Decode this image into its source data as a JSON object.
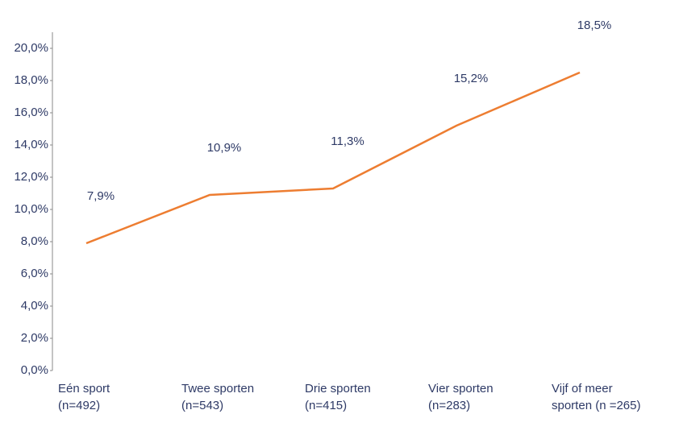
{
  "chart_data": {
    "type": "line",
    "categories": [
      "Eén sport\n(n=492)",
      "Twee sporten\n(n=543)",
      "Drie sporten\n(n=415)",
      "Vier sporten\n(n=283)",
      "Vijf of meer\nsporten (n =265)"
    ],
    "series": [
      {
        "color": "#ed7d31",
        "values": [
          7.9,
          10.9,
          11.3,
          15.2,
          18.5
        ],
        "value_labels": [
          "7,9%",
          "10,9%",
          "11,3%",
          "15,2%",
          "18,5%"
        ]
      }
    ],
    "ylim": [
      0,
      20
    ],
    "yticks": [
      {
        "value": 0,
        "label": "0,0%"
      },
      {
        "value": 2,
        "label": "2,0%"
      },
      {
        "value": 4,
        "label": "4,0%"
      },
      {
        "value": 6,
        "label": "6,0%"
      },
      {
        "value": 8,
        "label": "8,0%"
      },
      {
        "value": 10,
        "label": "10,0%"
      },
      {
        "value": 12,
        "label": "12,0%"
      },
      {
        "value": 14,
        "label": "14,0%"
      },
      {
        "value": 16,
        "label": "16,0%"
      },
      {
        "value": 18,
        "label": "18,0%"
      },
      {
        "value": 20,
        "label": "20,0%"
      }
    ],
    "grid": false
  }
}
